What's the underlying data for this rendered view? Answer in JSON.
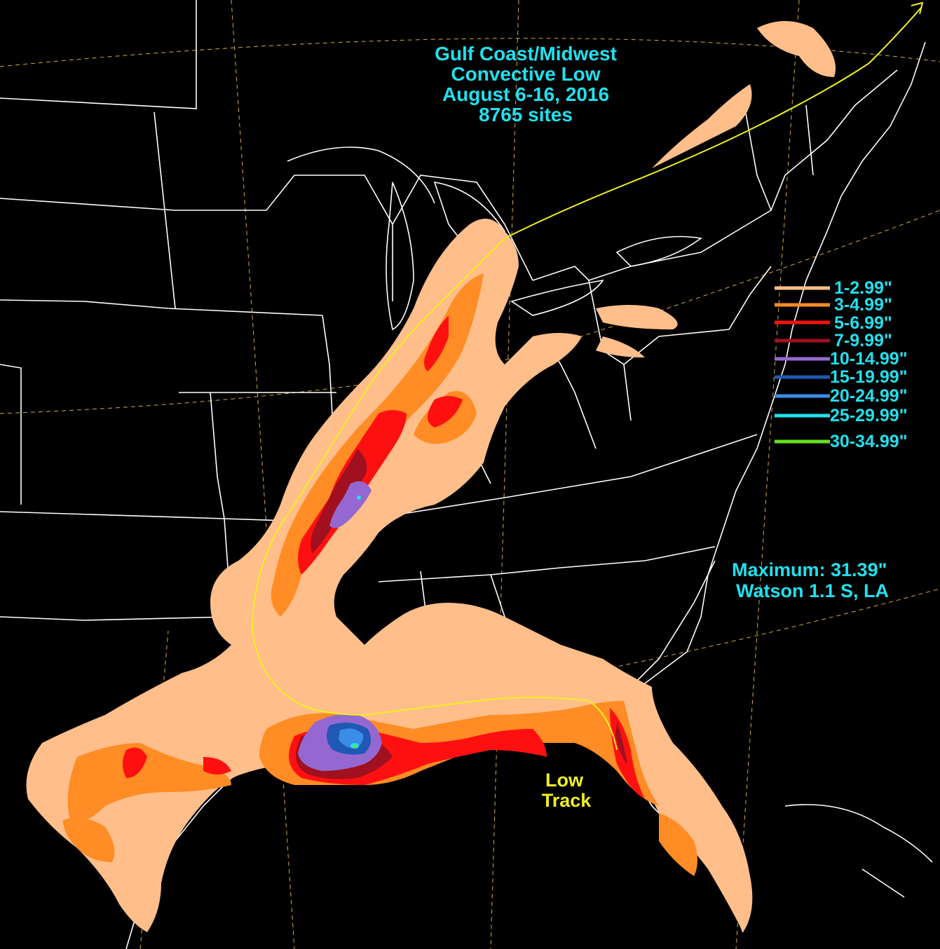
{
  "title": {
    "line1": "Gulf Coast/Midwest",
    "line2": "Convective Low",
    "line3": "August 6-16, 2016",
    "line4": "8765 sites"
  },
  "legend": [
    {
      "label": "1-2.99\"",
      "color": "#ffbe8a"
    },
    {
      "label": "3-4.99\"",
      "color": "#ff8c24"
    },
    {
      "label": "5-6.99\"",
      "color": "#ff1010"
    },
    {
      "label": "7-9.99\"",
      "color": "#a0101e"
    },
    {
      "label": "10-14.99\"",
      "color": "#9468d0"
    },
    {
      "label": "15-19.99\"",
      "color": "#2058b4"
    },
    {
      "label": "20-24.99\"",
      "color": "#3a8ee8"
    },
    {
      "label": "25-29.99\"",
      "color": "#22e0ee"
    },
    {
      "label": "30-34.99\"",
      "color": "#66e020"
    }
  ],
  "maximum": {
    "line1": "Maximum:  31.39\"",
    "line2": "Watson 1.1 S, LA"
  },
  "track_label": {
    "line1": "Low",
    "line2": "Track"
  },
  "colors": {
    "background": "#000000",
    "state_lines": "#ffffff",
    "lat_lon_grid": "#e8c040",
    "track": "#f0f020",
    "text": "#22e0ee"
  }
}
